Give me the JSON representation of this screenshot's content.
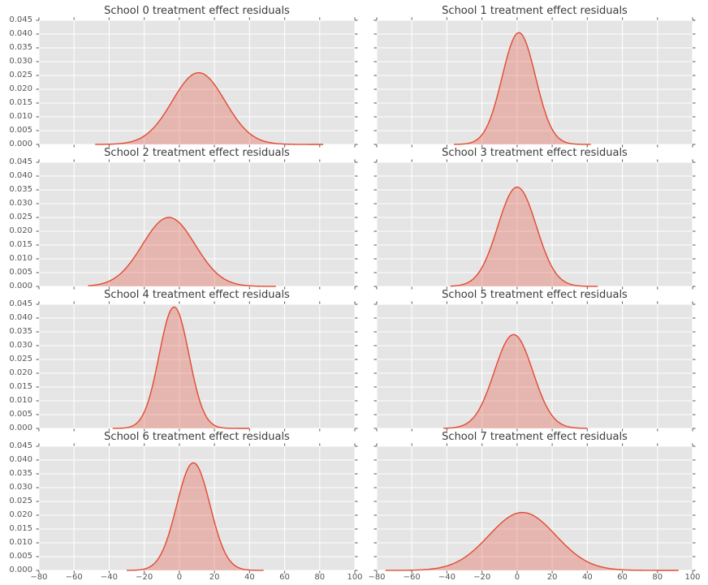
{
  "figure": {
    "panel_bg": "#e5e5e5",
    "grid_color": "#ffffff",
    "tick_color": "#555555",
    "title_color": "#3b3b3b",
    "label_color": "#555555",
    "line_color": "#e24a33",
    "fill_opacity": 0.3
  },
  "axes": {
    "x_range": [
      -80,
      100
    ],
    "x_ticks": [
      -80,
      -60,
      -40,
      -20,
      0,
      20,
      40,
      60,
      80,
      100
    ],
    "x_tick_labels": [
      "−80",
      "−60",
      "−40",
      "−20",
      "0",
      "20",
      "40",
      "60",
      "80",
      "100"
    ],
    "y_range": [
      0,
      0.045
    ],
    "y_ticks": [
      0,
      0.005,
      0.01,
      0.015,
      0.02,
      0.025,
      0.03,
      0.035,
      0.04,
      0.045
    ],
    "y_tick_labels": [
      "0.000",
      "0.005",
      "0.010",
      "0.015",
      "0.020",
      "0.025",
      "0.030",
      "0.035",
      "0.040",
      "0.045"
    ],
    "grid": "both",
    "xlabel": "",
    "ylabel": "",
    "legend": false
  },
  "chart_data": [
    {
      "type": "area",
      "title": "School 0 treatment effect residuals",
      "kde": {
        "mean": 11,
        "sd": 15,
        "peak_density": 0.026,
        "support": [
          -48,
          82
        ]
      }
    },
    {
      "type": "area",
      "title": "School 1 treatment effect residuals",
      "kde": {
        "mean": 1,
        "sd": 9.5,
        "peak_density": 0.0405,
        "support": [
          -36,
          42
        ]
      }
    },
    {
      "type": "area",
      "title": "School 2 treatment effect residuals",
      "kde": {
        "mean": -6,
        "sd": 15,
        "peak_density": 0.025,
        "support": [
          -52,
          55
        ]
      }
    },
    {
      "type": "area",
      "title": "School 3 treatment effect residuals",
      "kde": {
        "mean": 0,
        "sd": 11,
        "peak_density": 0.036,
        "support": [
          -38,
          46
        ]
      }
    },
    {
      "type": "area",
      "title": "School 4 treatment effect residuals",
      "kde": {
        "mean": -3,
        "sd": 8.5,
        "peak_density": 0.044,
        "support": [
          -38,
          40
        ]
      }
    },
    {
      "type": "area",
      "title": "School 5 treatment effect residuals",
      "kde": {
        "mean": -2,
        "sd": 11,
        "peak_density": 0.034,
        "support": [
          -42,
          40
        ]
      }
    },
    {
      "type": "area",
      "title": "School 6 treatment effect residuals",
      "kde": {
        "mean": 8,
        "sd": 9.5,
        "peak_density": 0.039,
        "support": [
          -30,
          48
        ]
      }
    },
    {
      "type": "area",
      "title": "School 7 treatment effect residuals",
      "kde": {
        "mean": 3,
        "sd": 19,
        "peak_density": 0.021,
        "support": [
          -75,
          92
        ]
      }
    }
  ],
  "layout": {
    "rows": 4,
    "cols": 2
  }
}
